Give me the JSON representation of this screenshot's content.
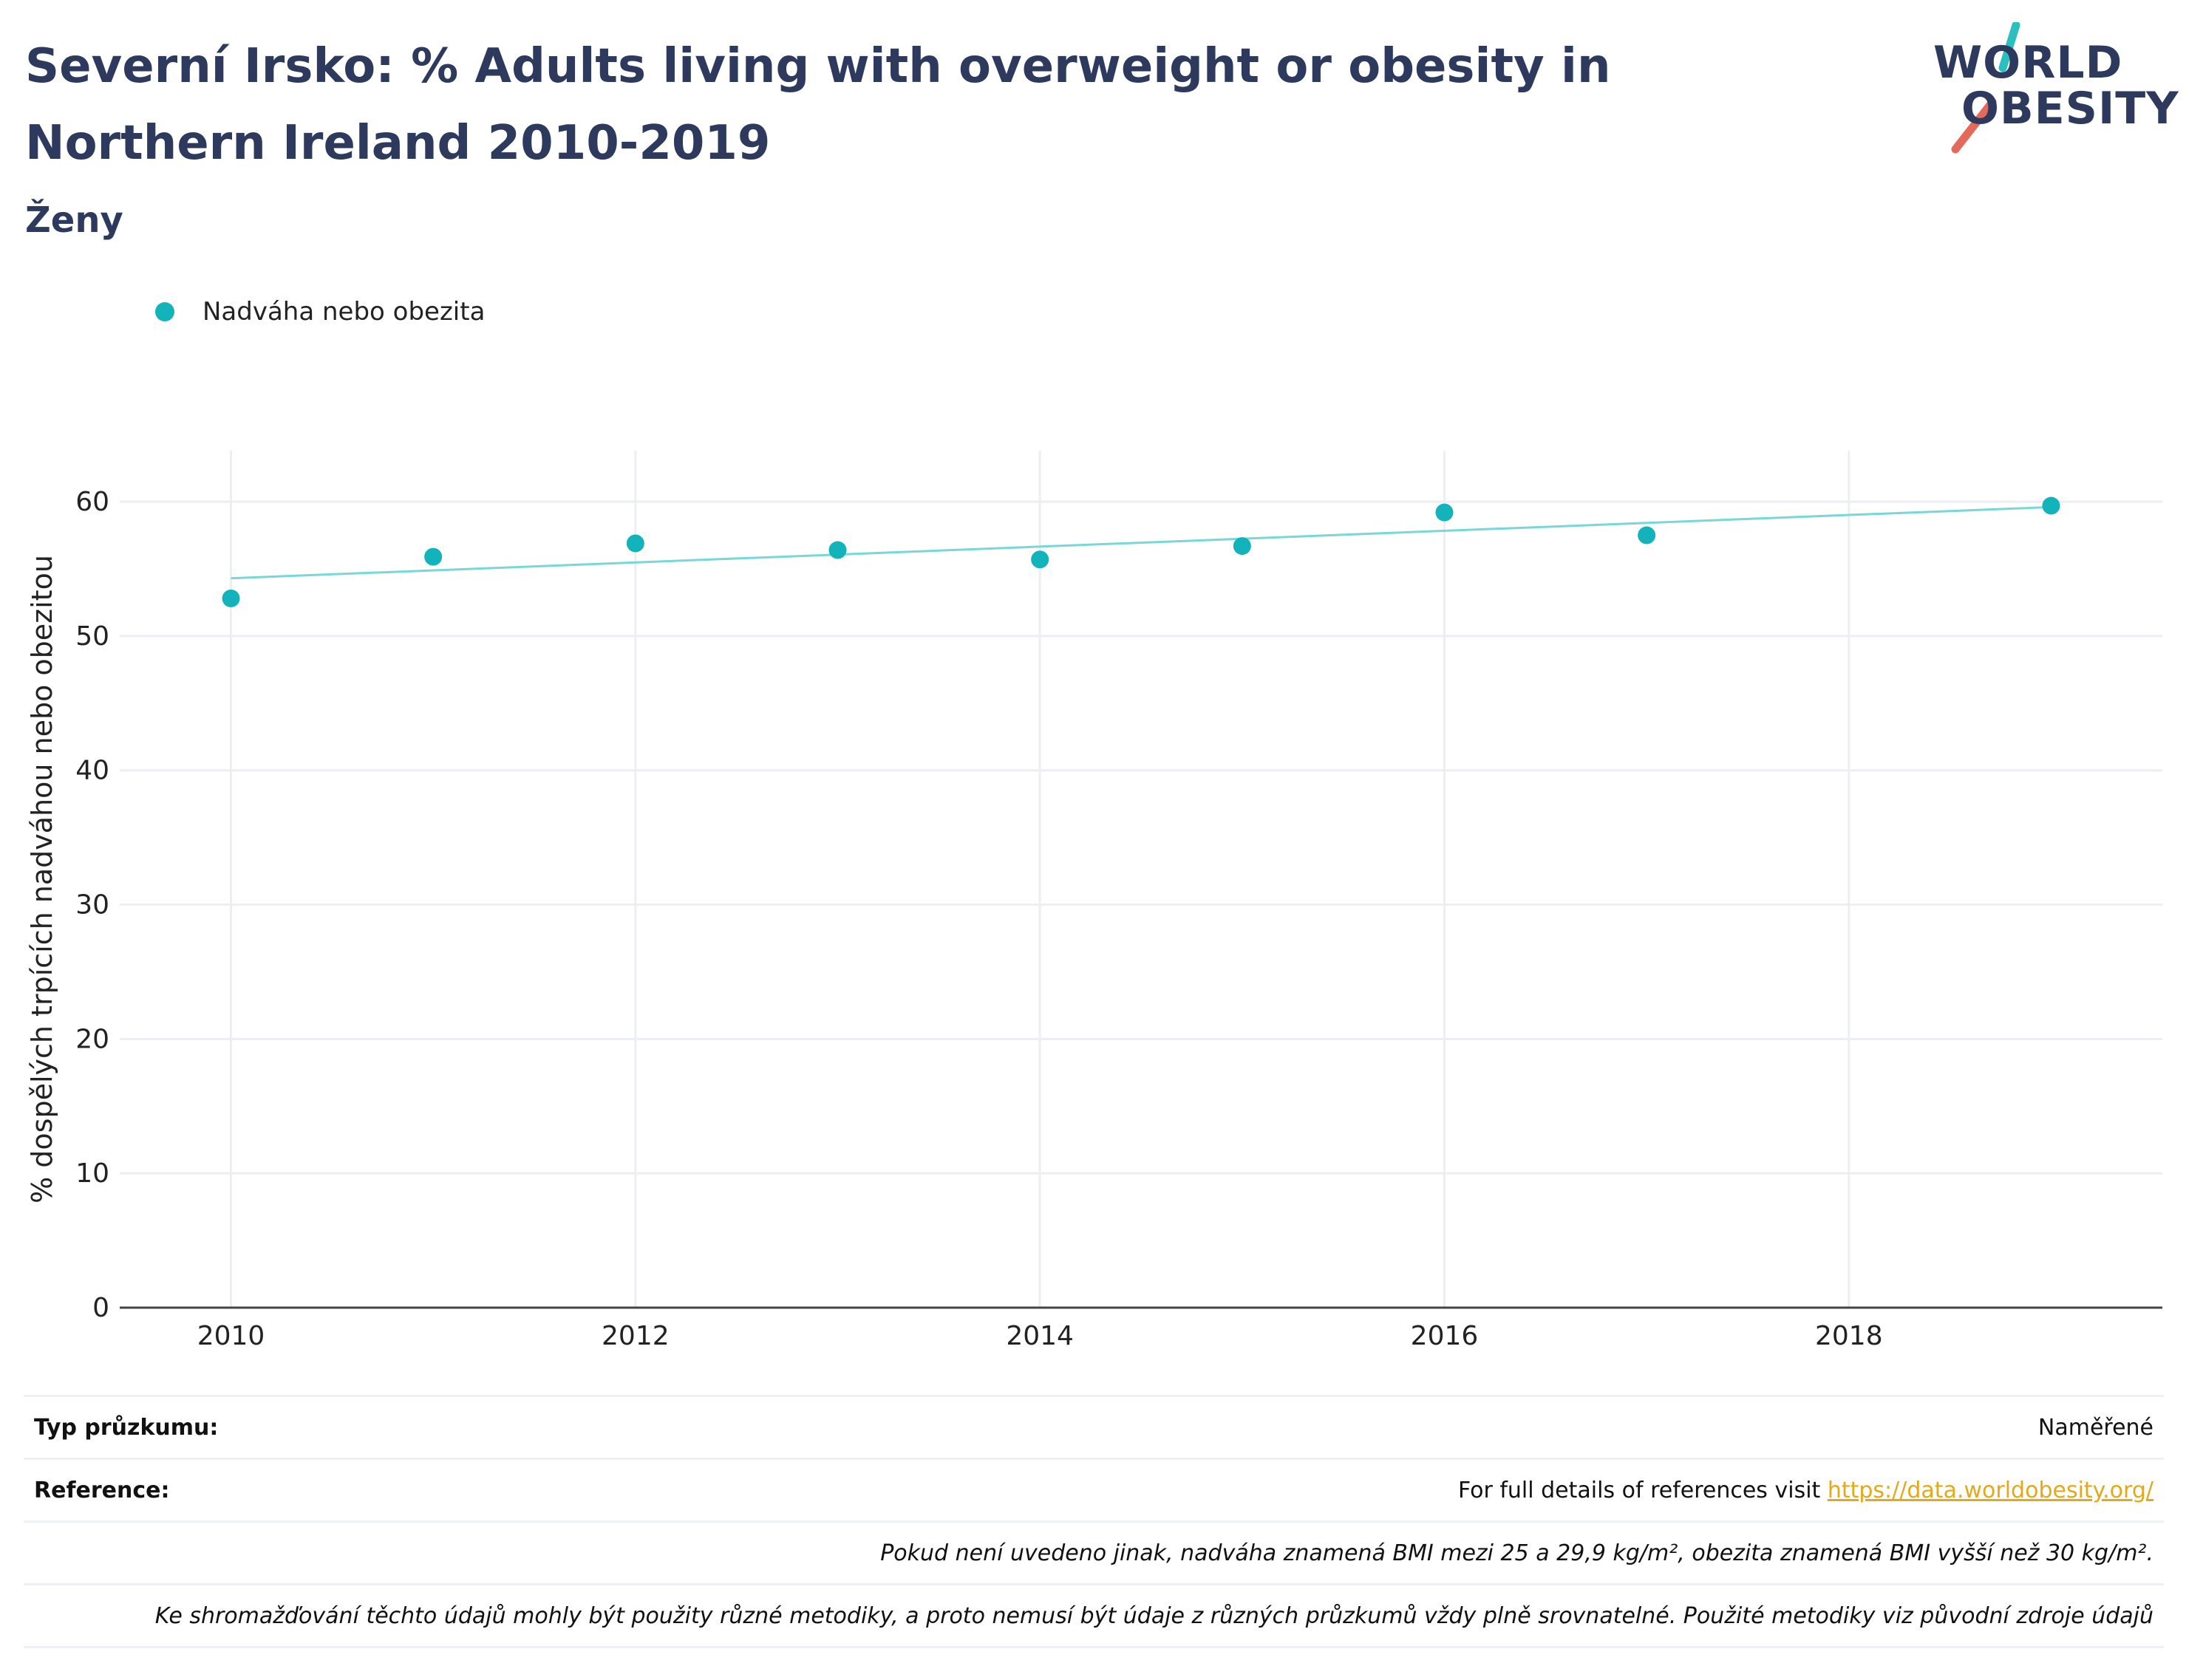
{
  "header": {
    "title": "Severní Irsko: % Adults living with overweight or obesity in Northern Ireland 2010-2019",
    "subtitle": "Ženy"
  },
  "logo": {
    "line1": "WORLD",
    "line2": "OBESITY",
    "colors": {
      "text": "#2d3a5e",
      "slash_top": "#2bbfbf",
      "slash_bottom": "#e36a5b"
    }
  },
  "legend": {
    "label": "Nadváha nebo obezita"
  },
  "chart_data": {
    "type": "scatter",
    "xlabel": "",
    "ylabel": "% dospělých trpících nadváhou nebo obezitou",
    "xlim": [
      2009.45,
      2019.55
    ],
    "ylim": [
      0,
      63.8
    ],
    "x_ticks": [
      2010,
      2012,
      2014,
      2016,
      2018
    ],
    "y_ticks": [
      0,
      10,
      20,
      30,
      40,
      50,
      60
    ],
    "grid": true,
    "legend_position": "top-left",
    "series": [
      {
        "name": "Nadváha nebo obezita",
        "color": "#12b3bb",
        "x": [
          2010,
          2011,
          2012,
          2013,
          2014,
          2015,
          2016,
          2017,
          2019
        ],
        "y": [
          52.8,
          55.9,
          56.9,
          56.4,
          55.7,
          56.7,
          59.2,
          57.5,
          59.7
        ]
      }
    ],
    "trendline": {
      "color": "#78d8d8",
      "x": [
        2010,
        2019
      ],
      "y": [
        54.3,
        59.6
      ]
    }
  },
  "footer": {
    "survey_type_label": "Typ průzkumu:",
    "survey_type_value": "Naměřené",
    "reference_label": "Reference:",
    "reference_text": "For full details of references visit",
    "reference_link": "https://data.worldobesity.org/",
    "note1": "Pokud není uvedeno jinak, nadváha znamená BMI mezi 25 a 29,9 kg/m², obezita znamená BMI vyšší než 30 kg/m².",
    "note2": "Ke shromažďování těchto údajů mohly být použity různé metodiky, a proto nemusí být údaje z různých průzkumů vždy plně srovnatelné. Použité metodiky viz původní zdroje údajů"
  }
}
